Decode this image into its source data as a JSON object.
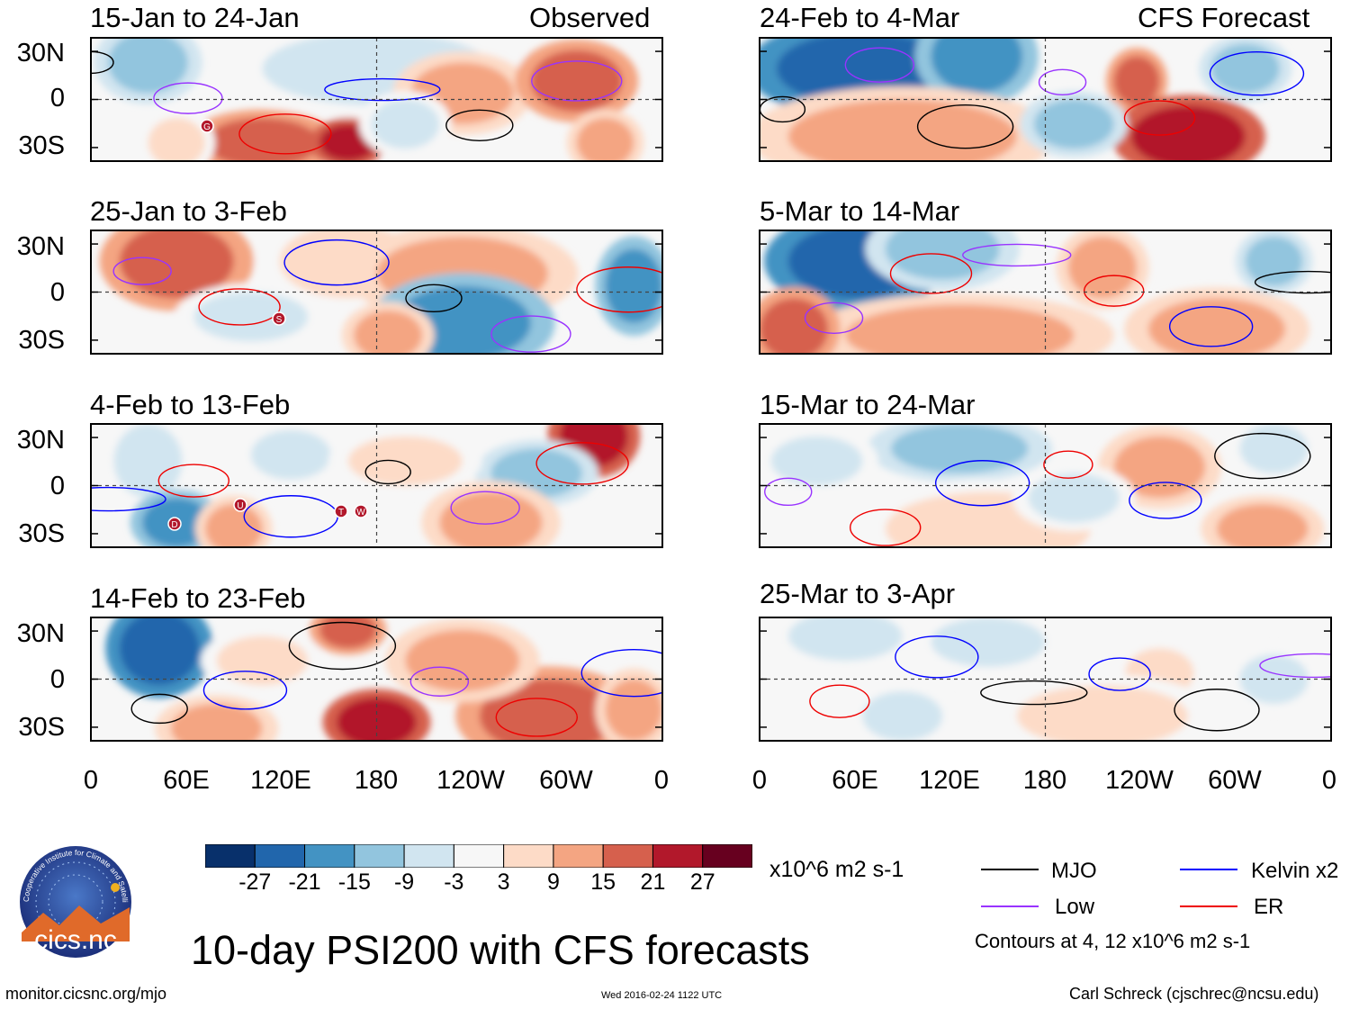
{
  "figure_title": "10-day PSI200 with CFS forecasts",
  "observed_label": "Observed",
  "forecast_label": "CFS Forecast",
  "y_ticks": [
    "30N",
    "0",
    "30S"
  ],
  "x_ticks": [
    "0",
    "60E",
    "120E",
    "180",
    "120W",
    "60W",
    "0"
  ],
  "panels_left": [
    {
      "title": "15-Jan to 24-Jan"
    },
    {
      "title": "25-Jan to 3-Feb"
    },
    {
      "title": "4-Feb to 13-Feb"
    },
    {
      "title": "14-Feb to 23-Feb"
    }
  ],
  "panels_right": [
    {
      "title": "24-Feb to 4-Mar"
    },
    {
      "title": "5-Mar to 14-Mar"
    },
    {
      "title": "15-Mar to 24-Mar"
    },
    {
      "title": "25-Mar to 3-Apr"
    }
  ],
  "storm_markers": [
    {
      "panel": 0,
      "letter": "G"
    },
    {
      "panel": 1,
      "letter": "S"
    },
    {
      "panel": 2,
      "letter": "D"
    },
    {
      "panel": 2,
      "letter": "U"
    },
    {
      "panel": 2,
      "letter": "T"
    },
    {
      "panel": 2,
      "letter": "W"
    }
  ],
  "colorbar": {
    "labels": [
      "-27",
      "-21",
      "-15",
      "-9",
      "-3",
      "3",
      "9",
      "15",
      "21",
      "27"
    ],
    "colors": [
      "#08306b",
      "#2166ac",
      "#4393c3",
      "#92c5de",
      "#d1e5f0",
      "#f7f7f7",
      "#fddbc7",
      "#f4a582",
      "#d6604d",
      "#b2182b",
      "#67001f"
    ],
    "units": "x10^6 m2 s-1"
  },
  "legend": {
    "items": [
      {
        "label": "MJO",
        "color": "#000000"
      },
      {
        "label": "Kelvin x2",
        "color": "#0000ff"
      },
      {
        "label": "Low",
        "color": "#9933ff"
      },
      {
        "label": "ER",
        "color": "#ee0000"
      }
    ],
    "contours_note": "Contours at 4, 12 x10^6 m2 s-1"
  },
  "logo_text": "cics.nc",
  "logo_ring_text": "Cooperative Institute for Climate and Satellites",
  "footer": {
    "url": "monitor.cicsnc.org/mjo",
    "timestamp": "Wed 2016-02-24 1122 UTC",
    "author": "Carl Schreck (cjschrec@ncsu.edu)"
  }
}
